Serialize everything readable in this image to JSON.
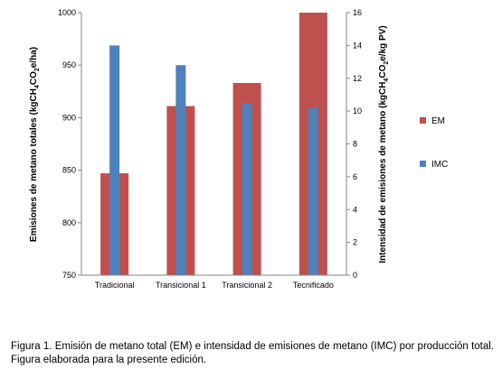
{
  "chart_data": {
    "type": "bar",
    "categories": [
      "Tradicional",
      "Transicional 1",
      "Transicional 2",
      "Tecnificado"
    ],
    "series": [
      {
        "name": "EM",
        "axis": "left",
        "color": "#c0504d",
        "values": [
          847,
          911,
          933,
          1000
        ]
      },
      {
        "name": "IMC",
        "axis": "right",
        "color": "#4f81bd",
        "values": [
          14.0,
          12.8,
          10.5,
          10.2
        ]
      }
    ],
    "left_axis": {
      "label": "Emisiones de metano totales (kgCH4CO2e/ha)",
      "label_main": "Emisiones de metano totales (kgCH",
      "label_sub1": "4",
      "label_mid": "CO",
      "label_sub2": "2",
      "label_end": "e/ha)",
      "ylim": [
        750,
        1000
      ],
      "ticks": [
        750,
        800,
        850,
        900,
        950,
        1000
      ]
    },
    "right_axis": {
      "label": "Intensidad de emisiones de metano (kgCH4CO2e/kg PV)",
      "label_main": "Intensidad de emisiones de metano (kgCH",
      "label_sub1": "4",
      "label_mid": "CO",
      "label_sub2": "2",
      "label_end": "e/kg PV)",
      "ylim": [
        0,
        16
      ],
      "ticks": [
        0,
        2,
        4,
        6,
        8,
        10,
        12,
        14,
        16
      ]
    },
    "legend": {
      "placement": "right",
      "entries": [
        "EM",
        "IMC"
      ]
    },
    "grid": false
  },
  "caption": "Figura 1. Emisión de metano total (EM) e intensidad de emisiones de metano (IMC) por producción total. Figura elaborada para la presente edición."
}
